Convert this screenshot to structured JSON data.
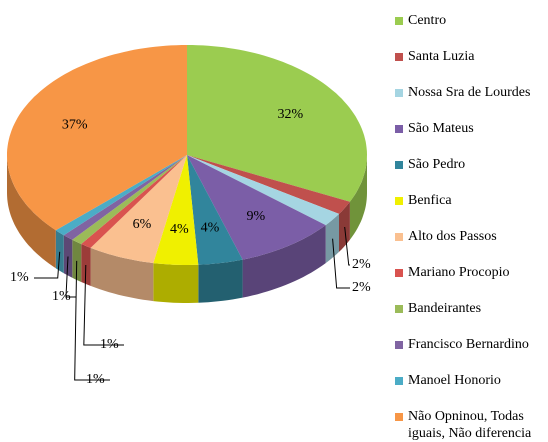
{
  "chart_data": {
    "type": "pie",
    "categories": [
      "Centro",
      "Santa Luzia",
      "Nossa Sra de Lourdes",
      "São Mateus",
      "São Pedro",
      "Benfica",
      "Alto dos Passos",
      "Mariano Procopio",
      "Bandeirantes",
      "Francisco Bernardino",
      "Manoel Honorio",
      "Não Opninou, Todas iguais, Não diferencia"
    ],
    "values": [
      32,
      2,
      2,
      9,
      4,
      4,
      6,
      1,
      1,
      1,
      1,
      37
    ],
    "value_labels": [
      "32%",
      "2%",
      "2%",
      "9%",
      "4%",
      "4%",
      "6%",
      "1%",
      "1%",
      "1%",
      "1%",
      "37%"
    ],
    "colors": [
      "#9bcc50",
      "#c0504d",
      "#a5d5e2",
      "#7b5ea7",
      "#31859c",
      "#f0f000",
      "#fac090",
      "#d9534f",
      "#9bbb59",
      "#8064a2",
      "#4bacc6",
      "#f79646"
    ],
    "legend": "right"
  }
}
